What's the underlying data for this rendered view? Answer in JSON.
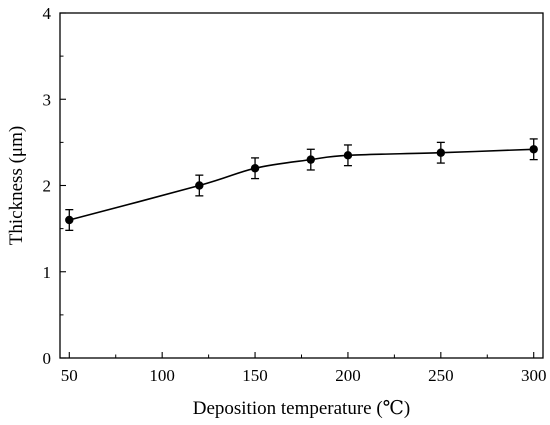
{
  "chart_data": {
    "type": "line",
    "xlabel": "Deposition temperature (℃)",
    "ylabel": "Thickness (μm)",
    "xlim": [
      45,
      305
    ],
    "ylim": [
      0,
      4
    ],
    "x_ticks": [
      50,
      100,
      150,
      200,
      250,
      300
    ],
    "y_ticks": [
      0,
      1,
      2,
      3,
      4
    ],
    "x_tick_labels": [
      "50",
      "100",
      "150",
      "200",
      "250",
      "300"
    ],
    "y_tick_labels": [
      "0",
      "1",
      "2",
      "3",
      "4"
    ],
    "grid": false,
    "series": [
      {
        "x": [
          50,
          120,
          150,
          180,
          200,
          250,
          300
        ],
        "y": [
          1.6,
          2.0,
          2.2,
          2.3,
          2.35,
          2.38,
          2.42
        ],
        "error": [
          0.12,
          0.12,
          0.12,
          0.12,
          0.12,
          0.12,
          0.12
        ],
        "color": "#000000"
      }
    ]
  }
}
